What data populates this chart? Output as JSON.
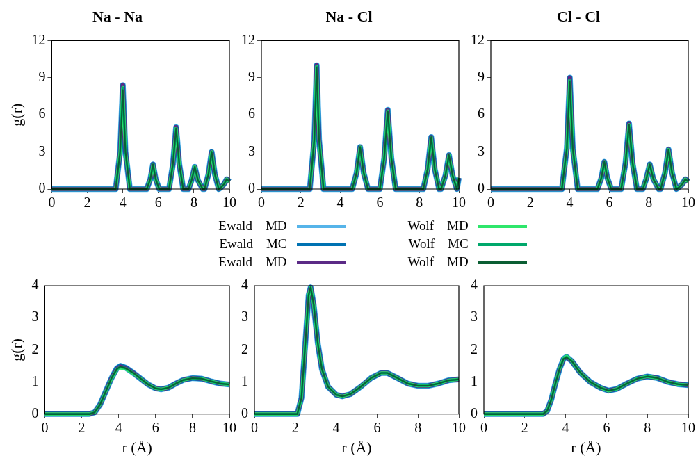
{
  "chart_data": [
    {
      "type": "line",
      "title": "Na - Na",
      "legend": "bottom",
      "ylabel": "g(r)",
      "xlim": [
        0,
        10
      ],
      "ylim": [
        0,
        12
      ],
      "xticks": [
        0,
        2,
        4,
        6,
        8,
        10
      ],
      "yticks": [
        0,
        3,
        6,
        9,
        12
      ],
      "grid": false,
      "marker": "none",
      "x": [
        0,
        3.6,
        3.85,
        4.0,
        4.15,
        4.4,
        5.35,
        5.55,
        5.7,
        5.85,
        6.05,
        6.6,
        6.82,
        7.0,
        7.18,
        7.4,
        7.7,
        7.87,
        8.05,
        8.23,
        8.5,
        8.6,
        8.82,
        9.0,
        9.18,
        9.4,
        9.5,
        9.7,
        9.85,
        10
      ],
      "series": [
        {
          "name": "Ewald – MD",
          "color": "#56b4e9",
          "values": [
            0,
            0,
            3,
            8.4,
            3,
            0,
            0,
            0.8,
            2.0,
            0.8,
            0,
            0,
            2,
            5.0,
            2,
            0,
            0,
            0.7,
            1.8,
            0.7,
            0,
            0,
            1.2,
            3.0,
            1.2,
            0,
            0.1,
            0.4,
            0.8,
            0.6
          ]
        },
        {
          "name": "Ewald – MC",
          "color": "#0072b2",
          "values": [
            0,
            0,
            3,
            8.4,
            3,
            0,
            0,
            0.8,
            2.0,
            0.8,
            0,
            0,
            2,
            5.0,
            2,
            0,
            0,
            0.7,
            1.8,
            0.7,
            0,
            0,
            1.2,
            3.0,
            1.2,
            0,
            0.1,
            0.4,
            0.8,
            0.6
          ]
        },
        {
          "name": "Ewald – MD",
          "color": "#5b2a86",
          "values": [
            0,
            0,
            3,
            8.4,
            3,
            0,
            0,
            0.8,
            2.0,
            0.8,
            0,
            0,
            2,
            5.0,
            2,
            0,
            0,
            0.7,
            1.8,
            0.7,
            0,
            0,
            1.2,
            3.0,
            1.2,
            0,
            0.1,
            0.4,
            0.8,
            0.6
          ]
        },
        {
          "name": "Wolf – MD",
          "color": "#2ee66b",
          "values": [
            0,
            0,
            3,
            8.2,
            3,
            0,
            0,
            0.8,
            2.0,
            0.8,
            0,
            0,
            2,
            4.9,
            2,
            0,
            0,
            0.7,
            1.8,
            0.7,
            0,
            0,
            1.2,
            3.0,
            1.2,
            0,
            0.1,
            0.4,
            0.8,
            0.6
          ]
        },
        {
          "name": "Wolf – MC",
          "color": "#00a86b",
          "values": [
            0,
            0,
            3,
            8.2,
            3,
            0,
            0,
            0.8,
            2.0,
            0.8,
            0,
            0,
            2,
            4.9,
            2,
            0,
            0,
            0.7,
            1.8,
            0.7,
            0,
            0,
            1.2,
            3.0,
            1.2,
            0,
            0.1,
            0.4,
            0.8,
            0.6
          ]
        },
        {
          "name": "Wolf – MD",
          "color": "#0b5e33",
          "values": [
            0,
            0,
            3,
            8.0,
            3,
            0,
            0,
            0.8,
            2.0,
            0.8,
            0,
            0,
            2,
            4.9,
            2,
            0,
            0,
            0.7,
            1.8,
            0.7,
            0,
            0,
            1.2,
            3.0,
            1.2,
            0,
            0.1,
            0.4,
            0.8,
            0.6
          ]
        }
      ]
    },
    {
      "type": "line",
      "title": "Na - Cl",
      "xlim": [
        0,
        10
      ],
      "ylim": [
        0,
        12
      ],
      "xticks": [
        0,
        2,
        4,
        6,
        8,
        10
      ],
      "yticks": [
        0,
        3,
        6,
        9,
        12
      ],
      "grid": false,
      "marker": "none",
      "x": [
        0,
        2.45,
        2.68,
        2.8,
        2.92,
        3.15,
        4.6,
        4.82,
        5.0,
        5.18,
        5.4,
        6.0,
        6.22,
        6.4,
        6.58,
        6.8,
        8.2,
        8.42,
        8.6,
        8.78,
        9.0,
        9.1,
        9.32,
        9.5,
        9.68,
        9.9,
        10
      ],
      "series": [
        {
          "color": "#56b4e9",
          "values": [
            0,
            0,
            4,
            10,
            4,
            0,
            0,
            1.3,
            3.4,
            1.3,
            0,
            0,
            2.5,
            6.4,
            2.5,
            0,
            0,
            1.6,
            4.2,
            1.6,
            0,
            0,
            1.1,
            2.75,
            1.1,
            0,
            0.9
          ]
        },
        {
          "color": "#0072b2",
          "values": [
            0,
            0,
            4,
            10,
            4,
            0,
            0,
            1.3,
            3.4,
            1.3,
            0,
            0,
            2.5,
            6.4,
            2.5,
            0,
            0,
            1.6,
            4.2,
            1.6,
            0,
            0,
            1.1,
            2.75,
            1.1,
            0,
            0.9
          ]
        },
        {
          "color": "#5b2a86",
          "values": [
            0,
            0,
            4,
            10,
            4,
            0,
            0,
            1.3,
            3.4,
            1.3,
            0,
            0,
            2.5,
            6.4,
            2.5,
            0,
            0,
            1.6,
            4.2,
            1.6,
            0,
            0,
            1.1,
            2.75,
            1.1,
            0,
            0.9
          ]
        },
        {
          "color": "#2ee66b",
          "values": [
            0,
            0,
            4,
            9.9,
            4,
            0,
            0,
            1.3,
            3.4,
            1.3,
            0,
            0,
            2.5,
            6.3,
            2.5,
            0,
            0,
            1.6,
            4.2,
            1.6,
            0,
            0,
            1.1,
            2.75,
            1.1,
            0,
            0.9
          ]
        },
        {
          "color": "#00a86b",
          "values": [
            0,
            0,
            4,
            9.9,
            4,
            0,
            0,
            1.3,
            3.4,
            1.3,
            0,
            0,
            2.5,
            6.3,
            2.5,
            0,
            0,
            1.6,
            4.2,
            1.6,
            0,
            0,
            1.1,
            2.75,
            1.1,
            0,
            0.9
          ]
        },
        {
          "color": "#0b5e33",
          "values": [
            0,
            0,
            4,
            9.8,
            4,
            0,
            0,
            1.3,
            3.4,
            1.3,
            0,
            0,
            2.5,
            6.3,
            2.5,
            0,
            0,
            1.6,
            4.2,
            1.6,
            0,
            0,
            1.1,
            2.75,
            1.1,
            0,
            0.9
          ]
        }
      ]
    },
    {
      "type": "line",
      "title": "Cl - Cl",
      "xlim": [
        0,
        10
      ],
      "ylim": [
        0,
        12
      ],
      "xticks": [
        0,
        2,
        4,
        6,
        8,
        10
      ],
      "yticks": [
        0,
        3,
        6,
        9,
        12
      ],
      "grid": false,
      "marker": "none",
      "x": [
        0,
        3.6,
        3.85,
        4.0,
        4.15,
        4.4,
        5.4,
        5.6,
        5.75,
        5.9,
        6.1,
        6.6,
        6.82,
        7.0,
        7.18,
        7.4,
        7.7,
        7.87,
        8.05,
        8.23,
        8.5,
        8.6,
        8.82,
        9.0,
        9.18,
        9.4,
        9.5,
        9.7,
        9.85,
        10
      ],
      "series": [
        {
          "color": "#56b4e9",
          "values": [
            0,
            0,
            3.3,
            9.0,
            3.3,
            0,
            0,
            0.9,
            2.2,
            0.9,
            0,
            0,
            2.1,
            5.3,
            2.1,
            0,
            0,
            0.8,
            2.0,
            0.8,
            0,
            0,
            1.3,
            3.2,
            1.3,
            0,
            0.1,
            0.4,
            0.8,
            0.6
          ]
        },
        {
          "color": "#0072b2",
          "values": [
            0,
            0,
            3.3,
            9.0,
            3.3,
            0,
            0,
            0.9,
            2.2,
            0.9,
            0,
            0,
            2.1,
            5.3,
            2.1,
            0,
            0,
            0.8,
            2.0,
            0.8,
            0,
            0,
            1.3,
            3.2,
            1.3,
            0,
            0.1,
            0.4,
            0.8,
            0.6
          ]
        },
        {
          "color": "#5b2a86",
          "values": [
            0,
            0,
            3.3,
            9.0,
            3.3,
            0,
            0,
            0.9,
            2.2,
            0.9,
            0,
            0,
            2.1,
            5.3,
            2.1,
            0,
            0,
            0.8,
            2.0,
            0.8,
            0,
            0,
            1.3,
            3.2,
            1.3,
            0,
            0.1,
            0.4,
            0.8,
            0.6
          ]
        },
        {
          "color": "#2ee66b",
          "values": [
            0,
            0,
            3.3,
            8.8,
            3.3,
            0,
            0,
            0.9,
            2.2,
            0.9,
            0,
            0,
            2.1,
            5.2,
            2.1,
            0,
            0,
            0.8,
            2.0,
            0.8,
            0,
            0,
            1.3,
            3.2,
            1.3,
            0,
            0.1,
            0.4,
            0.8,
            0.6
          ]
        },
        {
          "color": "#00a86b",
          "values": [
            0,
            0,
            3.3,
            8.8,
            3.3,
            0,
            0,
            0.9,
            2.2,
            0.9,
            0,
            0,
            2.1,
            5.2,
            2.1,
            0,
            0,
            0.8,
            2.0,
            0.8,
            0,
            0,
            1.3,
            3.2,
            1.3,
            0,
            0.1,
            0.4,
            0.8,
            0.6
          ]
        },
        {
          "color": "#0b5e33",
          "values": [
            0,
            0,
            3.3,
            8.7,
            3.3,
            0,
            0,
            0.9,
            2.2,
            0.9,
            0,
            0,
            2.1,
            5.2,
            2.1,
            0,
            0,
            0.8,
            2.0,
            0.8,
            0,
            0,
            1.3,
            3.2,
            1.3,
            0,
            0.1,
            0.4,
            0.8,
            0.6
          ]
        }
      ]
    },
    {
      "type": "line",
      "ylabel": "g(r)",
      "xlabel": "r (Å)",
      "xlim": [
        0,
        10
      ],
      "ylim": [
        0,
        4
      ],
      "xticks": [
        0,
        2,
        4,
        6,
        8,
        10
      ],
      "yticks": [
        0,
        1,
        2,
        3,
        4
      ],
      "grid": false,
      "marker": "none",
      "x": [
        0,
        2.4,
        2.7,
        3.0,
        3.3,
        3.6,
        3.9,
        4.1,
        4.4,
        4.8,
        5.2,
        5.6,
        6.0,
        6.3,
        6.7,
        7.1,
        7.5,
        8.0,
        8.5,
        9.0,
        9.5,
        10
      ],
      "series": [
        {
          "color": "#56b4e9",
          "values": [
            0,
            0,
            0.05,
            0.3,
            0.7,
            1.1,
            1.42,
            1.5,
            1.44,
            1.28,
            1.1,
            0.92,
            0.8,
            0.77,
            0.82,
            0.95,
            1.06,
            1.12,
            1.1,
            1.02,
            0.95,
            0.92
          ]
        },
        {
          "color": "#0072b2",
          "values": [
            0,
            0,
            0.05,
            0.3,
            0.7,
            1.1,
            1.42,
            1.5,
            1.44,
            1.28,
            1.1,
            0.92,
            0.8,
            0.77,
            0.82,
            0.95,
            1.06,
            1.12,
            1.1,
            1.02,
            0.95,
            0.92
          ]
        },
        {
          "color": "#5b2a86",
          "values": [
            0,
            0,
            0.05,
            0.3,
            0.7,
            1.1,
            1.4,
            1.48,
            1.42,
            1.28,
            1.1,
            0.92,
            0.8,
            0.77,
            0.82,
            0.95,
            1.06,
            1.12,
            1.1,
            1.02,
            0.95,
            0.92
          ]
        },
        {
          "color": "#2ee66b",
          "values": [
            0,
            0,
            0.05,
            0.3,
            0.7,
            1.08,
            1.38,
            1.44,
            1.4,
            1.26,
            1.1,
            0.92,
            0.8,
            0.77,
            0.82,
            0.95,
            1.06,
            1.12,
            1.1,
            1.02,
            0.95,
            0.92
          ]
        },
        {
          "color": "#00a86b",
          "values": [
            0,
            0,
            0.05,
            0.3,
            0.7,
            1.1,
            1.4,
            1.47,
            1.42,
            1.28,
            1.1,
            0.92,
            0.8,
            0.77,
            0.82,
            0.95,
            1.06,
            1.12,
            1.1,
            1.02,
            0.95,
            0.92
          ]
        },
        {
          "color": "#0b5e33",
          "values": [
            0,
            0,
            0.05,
            0.3,
            0.7,
            1.1,
            1.4,
            1.48,
            1.42,
            1.28,
            1.1,
            0.92,
            0.8,
            0.77,
            0.82,
            0.95,
            1.06,
            1.12,
            1.1,
            1.02,
            0.95,
            0.92
          ]
        }
      ]
    },
    {
      "type": "line",
      "xlabel": "r (Å)",
      "xlim": [
        0,
        10
      ],
      "ylim": [
        0,
        4
      ],
      "xticks": [
        0,
        2,
        4,
        6,
        8,
        10
      ],
      "yticks": [
        0,
        1,
        2,
        3,
        4
      ],
      "grid": false,
      "marker": "none",
      "x": [
        0,
        2.1,
        2.3,
        2.5,
        2.65,
        2.75,
        2.9,
        3.1,
        3.3,
        3.6,
        4.0,
        4.3,
        4.7,
        5.2,
        5.7,
        6.2,
        6.5,
        7.0,
        7.5,
        8.0,
        8.5,
        9.0,
        9.5,
        10
      ],
      "series": [
        {
          "color": "#56b4e9",
          "values": [
            0,
            0,
            0.5,
            2.3,
            3.7,
            3.95,
            3.4,
            2.2,
            1.4,
            0.85,
            0.6,
            0.55,
            0.62,
            0.85,
            1.12,
            1.28,
            1.28,
            1.12,
            0.95,
            0.88,
            0.88,
            0.95,
            1.05,
            1.08
          ]
        },
        {
          "color": "#0072b2",
          "values": [
            0,
            0,
            0.5,
            2.3,
            3.7,
            3.95,
            3.4,
            2.2,
            1.4,
            0.85,
            0.6,
            0.55,
            0.62,
            0.85,
            1.12,
            1.28,
            1.28,
            1.12,
            0.95,
            0.88,
            0.88,
            0.95,
            1.05,
            1.08
          ]
        },
        {
          "color": "#5b2a86",
          "values": [
            0,
            0,
            0.5,
            2.3,
            3.7,
            3.95,
            3.4,
            2.2,
            1.4,
            0.85,
            0.6,
            0.55,
            0.62,
            0.85,
            1.12,
            1.28,
            1.28,
            1.12,
            0.95,
            0.88,
            0.88,
            0.95,
            1.05,
            1.08
          ]
        },
        {
          "color": "#2ee66b",
          "values": [
            0,
            0,
            0.5,
            2.3,
            3.7,
            3.95,
            3.4,
            2.2,
            1.4,
            0.85,
            0.6,
            0.55,
            0.62,
            0.85,
            1.12,
            1.28,
            1.28,
            1.12,
            0.95,
            0.88,
            0.88,
            0.95,
            1.05,
            1.08
          ]
        },
        {
          "color": "#00a86b",
          "values": [
            0,
            0,
            0.5,
            2.3,
            3.7,
            3.95,
            3.4,
            2.2,
            1.4,
            0.85,
            0.6,
            0.55,
            0.62,
            0.85,
            1.12,
            1.28,
            1.28,
            1.12,
            0.95,
            0.88,
            0.88,
            0.95,
            1.05,
            1.08
          ]
        },
        {
          "color": "#0b5e33",
          "values": [
            0,
            0,
            0.5,
            2.3,
            3.7,
            3.95,
            3.4,
            2.2,
            1.4,
            0.85,
            0.6,
            0.55,
            0.62,
            0.85,
            1.12,
            1.28,
            1.28,
            1.12,
            0.95,
            0.88,
            0.88,
            0.95,
            1.05,
            1.08
          ]
        }
      ]
    },
    {
      "type": "line",
      "xlabel": "r (Å)",
      "xlim": [
        0,
        10
      ],
      "ylim": [
        0,
        4
      ],
      "xticks": [
        0,
        2,
        4,
        6,
        8,
        10
      ],
      "yticks": [
        0,
        1,
        2,
        3,
        4
      ],
      "grid": false,
      "marker": "none",
      "x": [
        0,
        2.9,
        3.1,
        3.3,
        3.5,
        3.7,
        3.9,
        4.05,
        4.3,
        4.7,
        5.2,
        5.7,
        6.1,
        6.5,
        7.0,
        7.5,
        8.0,
        8.5,
        9.0,
        9.5,
        10
      ],
      "series": [
        {
          "color": "#56b4e9",
          "values": [
            0,
            0,
            0.1,
            0.45,
            0.95,
            1.4,
            1.72,
            1.78,
            1.65,
            1.3,
            1.0,
            0.82,
            0.73,
            0.78,
            0.95,
            1.1,
            1.17,
            1.12,
            1.0,
            0.93,
            0.9
          ]
        },
        {
          "color": "#0072b2",
          "values": [
            0,
            0,
            0.1,
            0.45,
            0.95,
            1.4,
            1.72,
            1.78,
            1.65,
            1.3,
            1.0,
            0.82,
            0.73,
            0.78,
            0.95,
            1.1,
            1.17,
            1.12,
            1.0,
            0.93,
            0.9
          ]
        },
        {
          "color": "#5b2a86",
          "values": [
            0,
            0,
            0.1,
            0.45,
            0.95,
            1.4,
            1.72,
            1.78,
            1.65,
            1.3,
            1.0,
            0.82,
            0.73,
            0.78,
            0.95,
            1.1,
            1.17,
            1.12,
            1.0,
            0.93,
            0.9
          ]
        },
        {
          "color": "#2ee66b",
          "values": [
            0,
            0,
            0.1,
            0.45,
            0.95,
            1.4,
            1.74,
            1.8,
            1.65,
            1.3,
            1.0,
            0.82,
            0.72,
            0.78,
            0.95,
            1.1,
            1.17,
            1.12,
            1.0,
            0.93,
            0.9
          ]
        },
        {
          "color": "#00a86b",
          "values": [
            0,
            0,
            0.1,
            0.45,
            0.95,
            1.4,
            1.72,
            1.78,
            1.65,
            1.3,
            1.0,
            0.82,
            0.73,
            0.78,
            0.95,
            1.1,
            1.17,
            1.12,
            1.0,
            0.93,
            0.9
          ]
        },
        {
          "color": "#0b5e33",
          "values": [
            0,
            0,
            0.1,
            0.45,
            0.95,
            1.4,
            1.72,
            1.76,
            1.65,
            1.3,
            1.0,
            0.82,
            0.73,
            0.78,
            0.95,
            1.1,
            1.17,
            1.12,
            1.0,
            0.93,
            0.9
          ]
        }
      ]
    }
  ]
}
